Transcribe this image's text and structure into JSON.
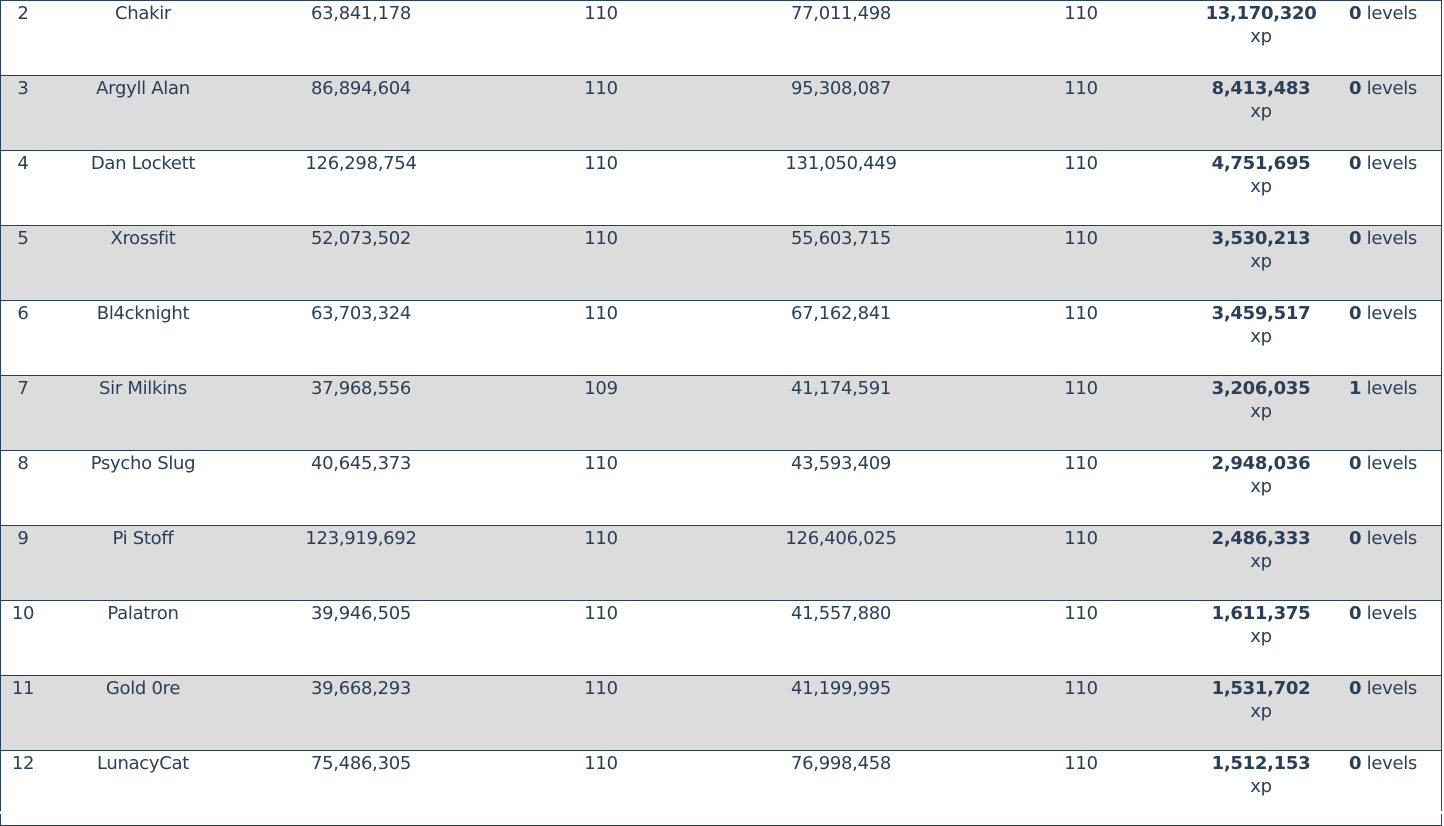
{
  "leaderboard": {
    "rows": [
      {
        "rank": "2",
        "name": "Chakir",
        "value1": "63,841,178",
        "level1": "110",
        "value2": "77,011,498",
        "level2": "110",
        "xp": "13,170,320",
        "xp_unit": "xp",
        "levels_num": "0",
        "levels_word": "levels"
      },
      {
        "rank": "3",
        "name": "Argyll Alan",
        "value1": "86,894,604",
        "level1": "110",
        "value2": "95,308,087",
        "level2": "110",
        "xp": "8,413,483",
        "xp_unit": "xp",
        "levels_num": "0",
        "levels_word": "levels"
      },
      {
        "rank": "4",
        "name": "Dan Lockett",
        "value1": "126,298,754",
        "level1": "110",
        "value2": "131,050,449",
        "level2": "110",
        "xp": "4,751,695",
        "xp_unit": "xp",
        "levels_num": "0",
        "levels_word": "levels"
      },
      {
        "rank": "5",
        "name": "Xrossfit",
        "value1": "52,073,502",
        "level1": "110",
        "value2": "55,603,715",
        "level2": "110",
        "xp": "3,530,213",
        "xp_unit": "xp",
        "levels_num": "0",
        "levels_word": "levels"
      },
      {
        "rank": "6",
        "name": "Bl4cknight",
        "value1": "63,703,324",
        "level1": "110",
        "value2": "67,162,841",
        "level2": "110",
        "xp": "3,459,517",
        "xp_unit": "xp",
        "levels_num": "0",
        "levels_word": "levels"
      },
      {
        "rank": "7",
        "name": "Sir Milkins",
        "value1": "37,968,556",
        "level1": "109",
        "value2": "41,174,591",
        "level2": "110",
        "xp": "3,206,035",
        "xp_unit": "xp",
        "levels_num": "1",
        "levels_word": "levels"
      },
      {
        "rank": "8",
        "name": "Psycho Slug",
        "value1": "40,645,373",
        "level1": "110",
        "value2": "43,593,409",
        "level2": "110",
        "xp": "2,948,036",
        "xp_unit": "xp",
        "levels_num": "0",
        "levels_word": "levels"
      },
      {
        "rank": "9",
        "name": "Pi Stoff",
        "value1": "123,919,692",
        "level1": "110",
        "value2": "126,406,025",
        "level2": "110",
        "xp": "2,486,333",
        "xp_unit": "xp",
        "levels_num": "0",
        "levels_word": "levels"
      },
      {
        "rank": "10",
        "name": "Palatron",
        "value1": "39,946,505",
        "level1": "110",
        "value2": "41,557,880",
        "level2": "110",
        "xp": "1,611,375",
        "xp_unit": "xp",
        "levels_num": "0",
        "levels_word": "levels"
      },
      {
        "rank": "11",
        "name": "Gold 0re",
        "value1": "39,668,293",
        "level1": "110",
        "value2": "41,199,995",
        "level2": "110",
        "xp": "1,531,702",
        "xp_unit": "xp",
        "levels_num": "0",
        "levels_word": "levels"
      },
      {
        "rank": "12",
        "name": "LunacyCat",
        "value1": "75,486,305",
        "level1": "110",
        "value2": "76,998,458",
        "level2": "110",
        "xp": "1,512,153",
        "xp_unit": "xp",
        "levels_num": "0",
        "levels_word": "levels"
      }
    ]
  },
  "colors": {
    "text": "#2a3f5a",
    "border": "#2a3f5a",
    "row_alt": "#dcdcdc",
    "row_white": "#ffffff"
  }
}
